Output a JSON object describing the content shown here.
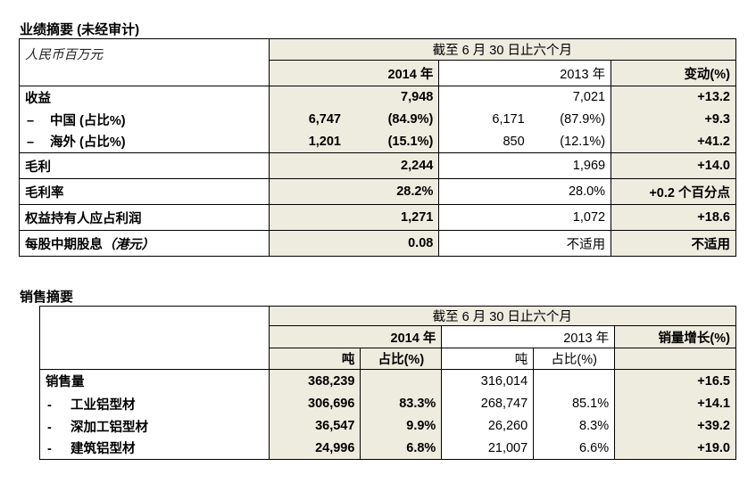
{
  "summary": {
    "title": "业绩摘要 (未经审计)",
    "unit_label": "人民币百万元",
    "period_header": "截至 6 月 30 日止六个月",
    "col_2014": "2014 年",
    "col_2013": "2013 年",
    "col_change": "变动(%)",
    "rows": {
      "revenue": {
        "label": "收益",
        "v2014": "7,948",
        "v2013": "7,021",
        "change": "+13.2"
      },
      "china": {
        "dash": "–",
        "label": "中国 (占比%)",
        "v2014a": "6,747",
        "v2014b": "(84.9%)",
        "v2013a": "6,171",
        "v2013b": "(87.9%)",
        "change": "+9.3"
      },
      "overseas": {
        "dash": "–",
        "label": "海外 (占比%)",
        "v2014a": "1,201",
        "v2014b": "(15.1%)",
        "v2013a": "850",
        "v2013b": "(12.1%)",
        "change": "+41.2"
      },
      "gross_profit": {
        "label": "毛利",
        "v2014": "2,244",
        "v2013": "1,969",
        "change": "+14.0"
      },
      "gross_margin": {
        "label": "毛利率",
        "v2014": "28.2%",
        "v2013": "28.0%",
        "change": "+0.2 个百分点"
      },
      "net_profit": {
        "label": "权益持有人应占利润",
        "v2014": "1,271",
        "v2013": "1,072",
        "change": "+18.6"
      },
      "dividend": {
        "label_main": "每股中期股息",
        "label_unit": "（港元）",
        "v2014": "0.08",
        "v2013": "不适用",
        "change": "不适用"
      }
    }
  },
  "sales": {
    "title": "销售摘要",
    "period_header": "截至 6 月 30 日止六个月",
    "col_2014": "2014 年",
    "col_2013": "2013 年",
    "col_growth": "销量增长(%)",
    "sub_ton": "吨",
    "sub_share": "占比(%)",
    "rows": {
      "volume": {
        "label": "销售量",
        "t2014": "368,239",
        "t2013": "316,014",
        "growth": "+16.5"
      },
      "industrial": {
        "dash": "-",
        "label": "工业铝型材",
        "t2014": "306,696",
        "s2014": "83.3%",
        "t2013": "268,747",
        "s2013": "85.1%",
        "growth": "+14.1"
      },
      "deep": {
        "dash": "-",
        "label": "深加工铝型材",
        "t2014": "36,547",
        "s2014": "9.9%",
        "t2013": "26,260",
        "s2013": "8.3%",
        "growth": "+39.2"
      },
      "construction": {
        "dash": "-",
        "label": "建筑铝型材",
        "t2014": "24,996",
        "s2014": "6.8%",
        "t2013": "21,007",
        "s2013": "6.6%",
        "growth": "+19.0"
      }
    }
  }
}
